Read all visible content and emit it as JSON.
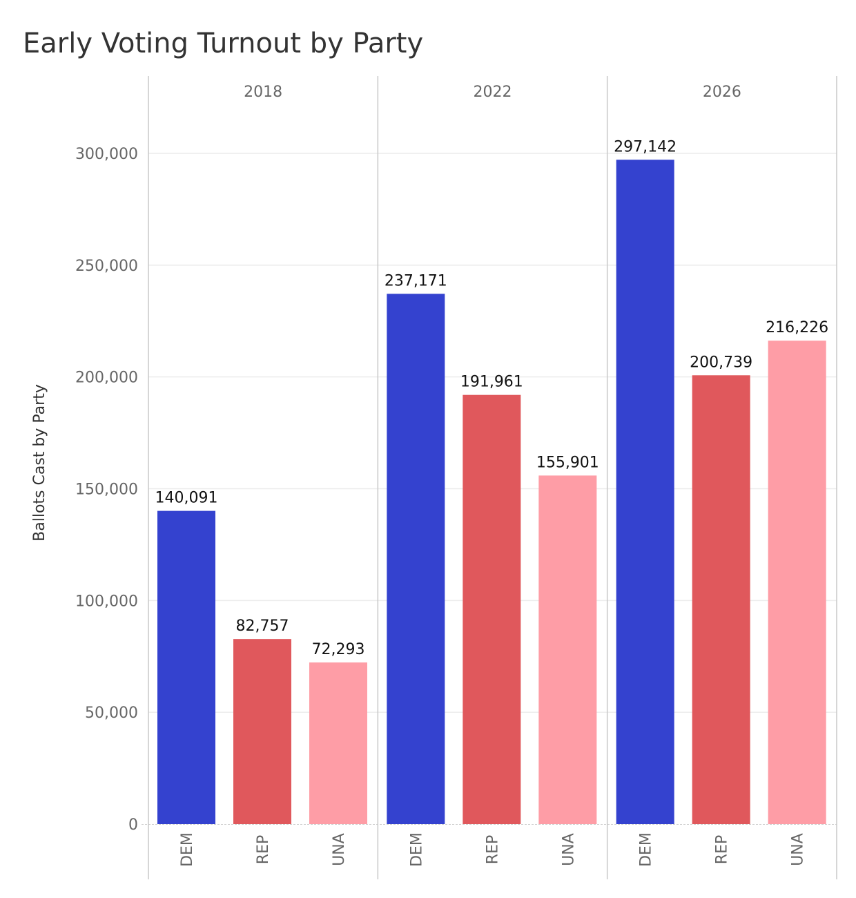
{
  "chart_data": {
    "type": "bar",
    "title": "Early Voting Turnout by Party",
    "ylabel": "Ballots Cast by Party",
    "ylim": [
      0,
      300000
    ],
    "yticks": [
      0,
      50000,
      100000,
      150000,
      200000,
      250000,
      300000
    ],
    "ytick_labels": [
      "0",
      "50,000",
      "100,000",
      "150,000",
      "200,000",
      "250,000",
      "300,000"
    ],
    "facets": [
      "2018",
      "2022",
      "2026"
    ],
    "categories": [
      "DEM",
      "REP",
      "UNA"
    ],
    "colors": {
      "DEM": "#3442cf",
      "REP": "#e0585c",
      "UNA": "#fe9da6"
    },
    "values": {
      "2018": [
        140091,
        82757,
        72293
      ],
      "2022": [
        237171,
        191961,
        155901
      ],
      "2026": [
        297142,
        200739,
        216226
      ]
    },
    "value_labels": {
      "2018": [
        "140,091",
        "82,757",
        "72,293"
      ],
      "2022": [
        "237,171",
        "191,961",
        "155,901"
      ],
      "2026": [
        "297,142",
        "200,739",
        "216,226"
      ]
    }
  }
}
